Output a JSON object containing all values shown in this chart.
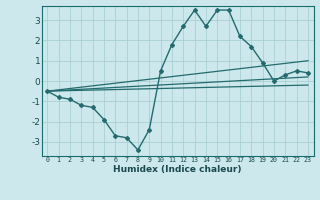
{
  "xlabel": "Humidex (Indice chaleur)",
  "ylabel": "",
  "background_color": "#cce8ec",
  "grid_color": "#aacfd4",
  "line_color": "#236b6e",
  "xlim": [
    -0.5,
    23.5
  ],
  "ylim": [
    -3.7,
    3.7
  ],
  "yticks": [
    -3,
    -2,
    -1,
    0,
    1,
    2,
    3
  ],
  "xticks": [
    0,
    1,
    2,
    3,
    4,
    5,
    6,
    7,
    8,
    9,
    10,
    11,
    12,
    13,
    14,
    15,
    16,
    17,
    18,
    19,
    20,
    21,
    22,
    23
  ],
  "main_x": [
    0,
    1,
    2,
    3,
    4,
    5,
    6,
    7,
    8,
    9,
    10,
    11,
    12,
    13,
    14,
    15,
    16,
    17,
    18,
    19,
    20,
    21,
    22,
    23
  ],
  "main_y": [
    -0.5,
    -0.8,
    -0.9,
    -1.2,
    -1.3,
    -1.9,
    -2.7,
    -2.8,
    -3.4,
    -2.4,
    0.5,
    1.8,
    2.7,
    3.5,
    2.7,
    3.5,
    3.5,
    2.2,
    1.7,
    0.9,
    0.0,
    0.3,
    0.5,
    0.4
  ],
  "line1_x": [
    0,
    23
  ],
  "line1_y": [
    -0.5,
    1.0
  ],
  "line2_x": [
    0,
    23
  ],
  "line2_y": [
    -0.5,
    0.2
  ],
  "line3_x": [
    0,
    23
  ],
  "line3_y": [
    -0.5,
    -0.2
  ]
}
